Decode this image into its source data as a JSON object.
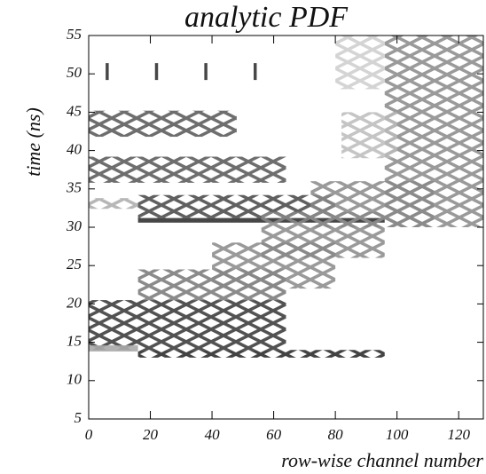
{
  "chart_data": {
    "type": "density",
    "title": "analytic PDF",
    "xlabel": "row-wise channel number",
    "ylabel": "time (ns)",
    "xlim": [
      0,
      128
    ],
    "ylim": [
      5,
      55
    ],
    "xticks": [
      0,
      20,
      40,
      60,
      80,
      100,
      120
    ],
    "yticks": [
      5,
      10,
      15,
      20,
      25,
      30,
      35,
      40,
      45,
      50,
      55
    ],
    "features": [
      {
        "x": [
          5.5,
          6.5
        ],
        "y": [
          49.2,
          51.4
        ],
        "color": "#333333"
      },
      {
        "x": [
          21.5,
          22.5
        ],
        "y": [
          49.2,
          51.4
        ],
        "color": "#333333"
      },
      {
        "x": [
          37.5,
          38.5
        ],
        "y": [
          49.2,
          51.4
        ],
        "color": "#333333"
      },
      {
        "x": [
          53.5,
          54.5
        ],
        "y": [
          49.2,
          51.4
        ],
        "color": "#333333"
      },
      {
        "x": [
          0,
          48
        ],
        "y": [
          41.8,
          45.2
        ],
        "color": "#555555"
      },
      {
        "x": [
          0,
          64
        ],
        "y": [
          35.8,
          39.2
        ],
        "color": "#555555"
      },
      {
        "x": [
          0,
          16
        ],
        "y": [
          32.4,
          33.8
        ],
        "color": "#aaaaaa"
      },
      {
        "x": [
          16,
          80
        ],
        "y": [
          31.2,
          34.2
        ],
        "color": "#444444"
      },
      {
        "x": [
          16,
          96
        ],
        "y": [
          30.6,
          31.2
        ],
        "color": "#333333"
      },
      {
        "x": [
          0,
          64
        ],
        "y": [
          14,
          20.5
        ],
        "color": "#333333"
      },
      {
        "x": [
          16,
          64
        ],
        "y": [
          20.5,
          24.5
        ],
        "color": "#777777"
      },
      {
        "x": [
          0,
          16
        ],
        "y": [
          13.8,
          14.6
        ],
        "color": "#aaaaaa"
      },
      {
        "x": [
          16,
          96
        ],
        "y": [
          13,
          14
        ],
        "color": "#222222"
      },
      {
        "x": [
          40,
          80
        ],
        "y": [
          22,
          28
        ],
        "color": "#888888"
      },
      {
        "x": [
          56,
          96
        ],
        "y": [
          26,
          32
        ],
        "color": "#888888"
      },
      {
        "x": [
          72,
          112
        ],
        "y": [
          30,
          36
        ],
        "color": "#888888"
      },
      {
        "x": [
          96,
          128
        ],
        "y": [
          30,
          55
        ],
        "color": "#888888"
      },
      {
        "x": [
          82,
          100
        ],
        "y": [
          39,
          45
        ],
        "color": "#bbbbbb"
      },
      {
        "x": [
          80,
          96
        ],
        "y": [
          48,
          55
        ],
        "color": "#cccccc"
      }
    ]
  }
}
